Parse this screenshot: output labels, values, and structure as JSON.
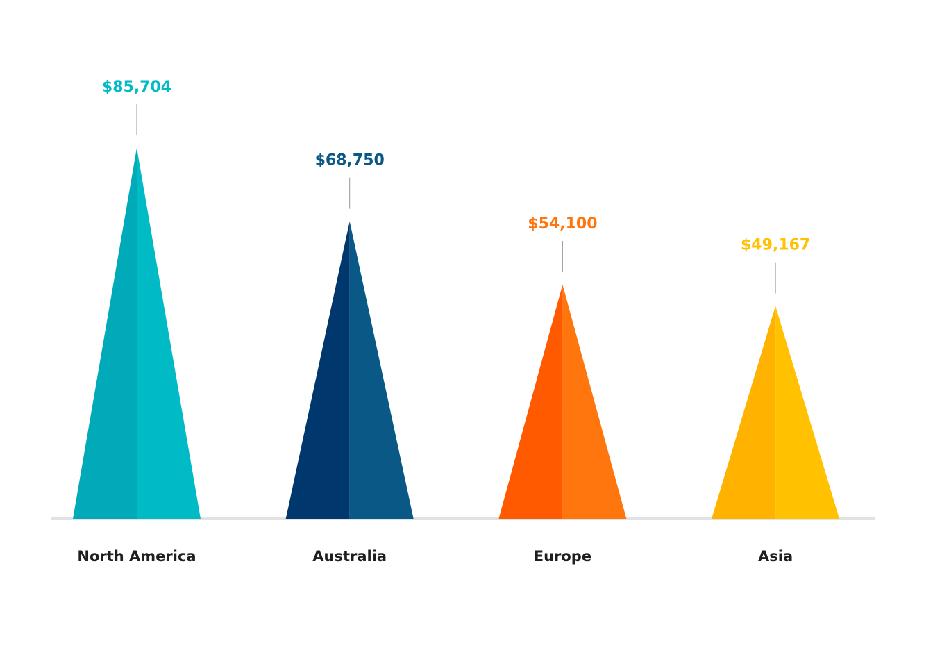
{
  "chart_data": {
    "type": "bar",
    "categories": [
      "North America",
      "Australia",
      "Europe",
      "Asia"
    ],
    "values": [
      85704,
      68750,
      54100,
      49167
    ],
    "value_labels": [
      "$85,704",
      "$68,750",
      "$54,100",
      "$49,167"
    ],
    "title": "",
    "xlabel": "",
    "ylabel": "",
    "ylim": [
      0,
      85704
    ],
    "grid": false,
    "legend": "none",
    "colors": [
      {
        "dark": "#00AAB8",
        "light": "#00BAC6"
      },
      {
        "dark": "#00386E",
        "light": "#0A5886"
      },
      {
        "dark": "#FF5A00",
        "light": "#FF760E"
      },
      {
        "dark": "#FFB200",
        "light": "#FFC100"
      }
    ],
    "baseline_color": "#E2E2E4",
    "leader_color": "#9A9A9A"
  }
}
